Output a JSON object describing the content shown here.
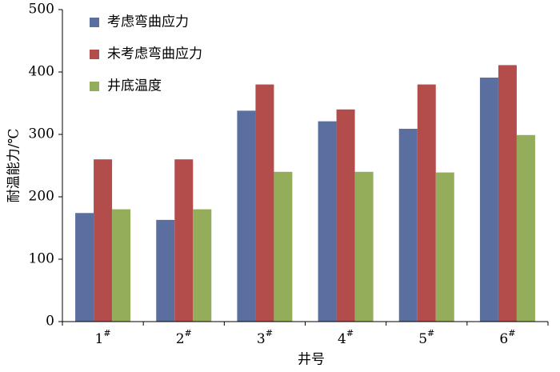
{
  "chart_data": {
    "type": "bar",
    "ylabel": "耐温能力/℃",
    "xlabel": "井号",
    "categories": [
      "1#",
      "2#",
      "3#",
      "4#",
      "5#",
      "6#"
    ],
    "series": [
      {
        "name": "考虑弯曲应力",
        "color": "#5a6fa0",
        "values": [
          174,
          163,
          338,
          321,
          309,
          391
        ]
      },
      {
        "name": "未考虑弯曲应力",
        "color": "#b34d4b",
        "values": [
          260,
          260,
          380,
          340,
          380,
          411
        ]
      },
      {
        "name": "井底温度",
        "color": "#93ad5b",
        "values": [
          180,
          180,
          240,
          240,
          239,
          299
        ]
      }
    ],
    "ylim": [
      0,
      500
    ],
    "yticks": [
      0,
      100,
      200,
      300,
      400,
      500
    ],
    "grid": false,
    "legend": "top-left"
  }
}
